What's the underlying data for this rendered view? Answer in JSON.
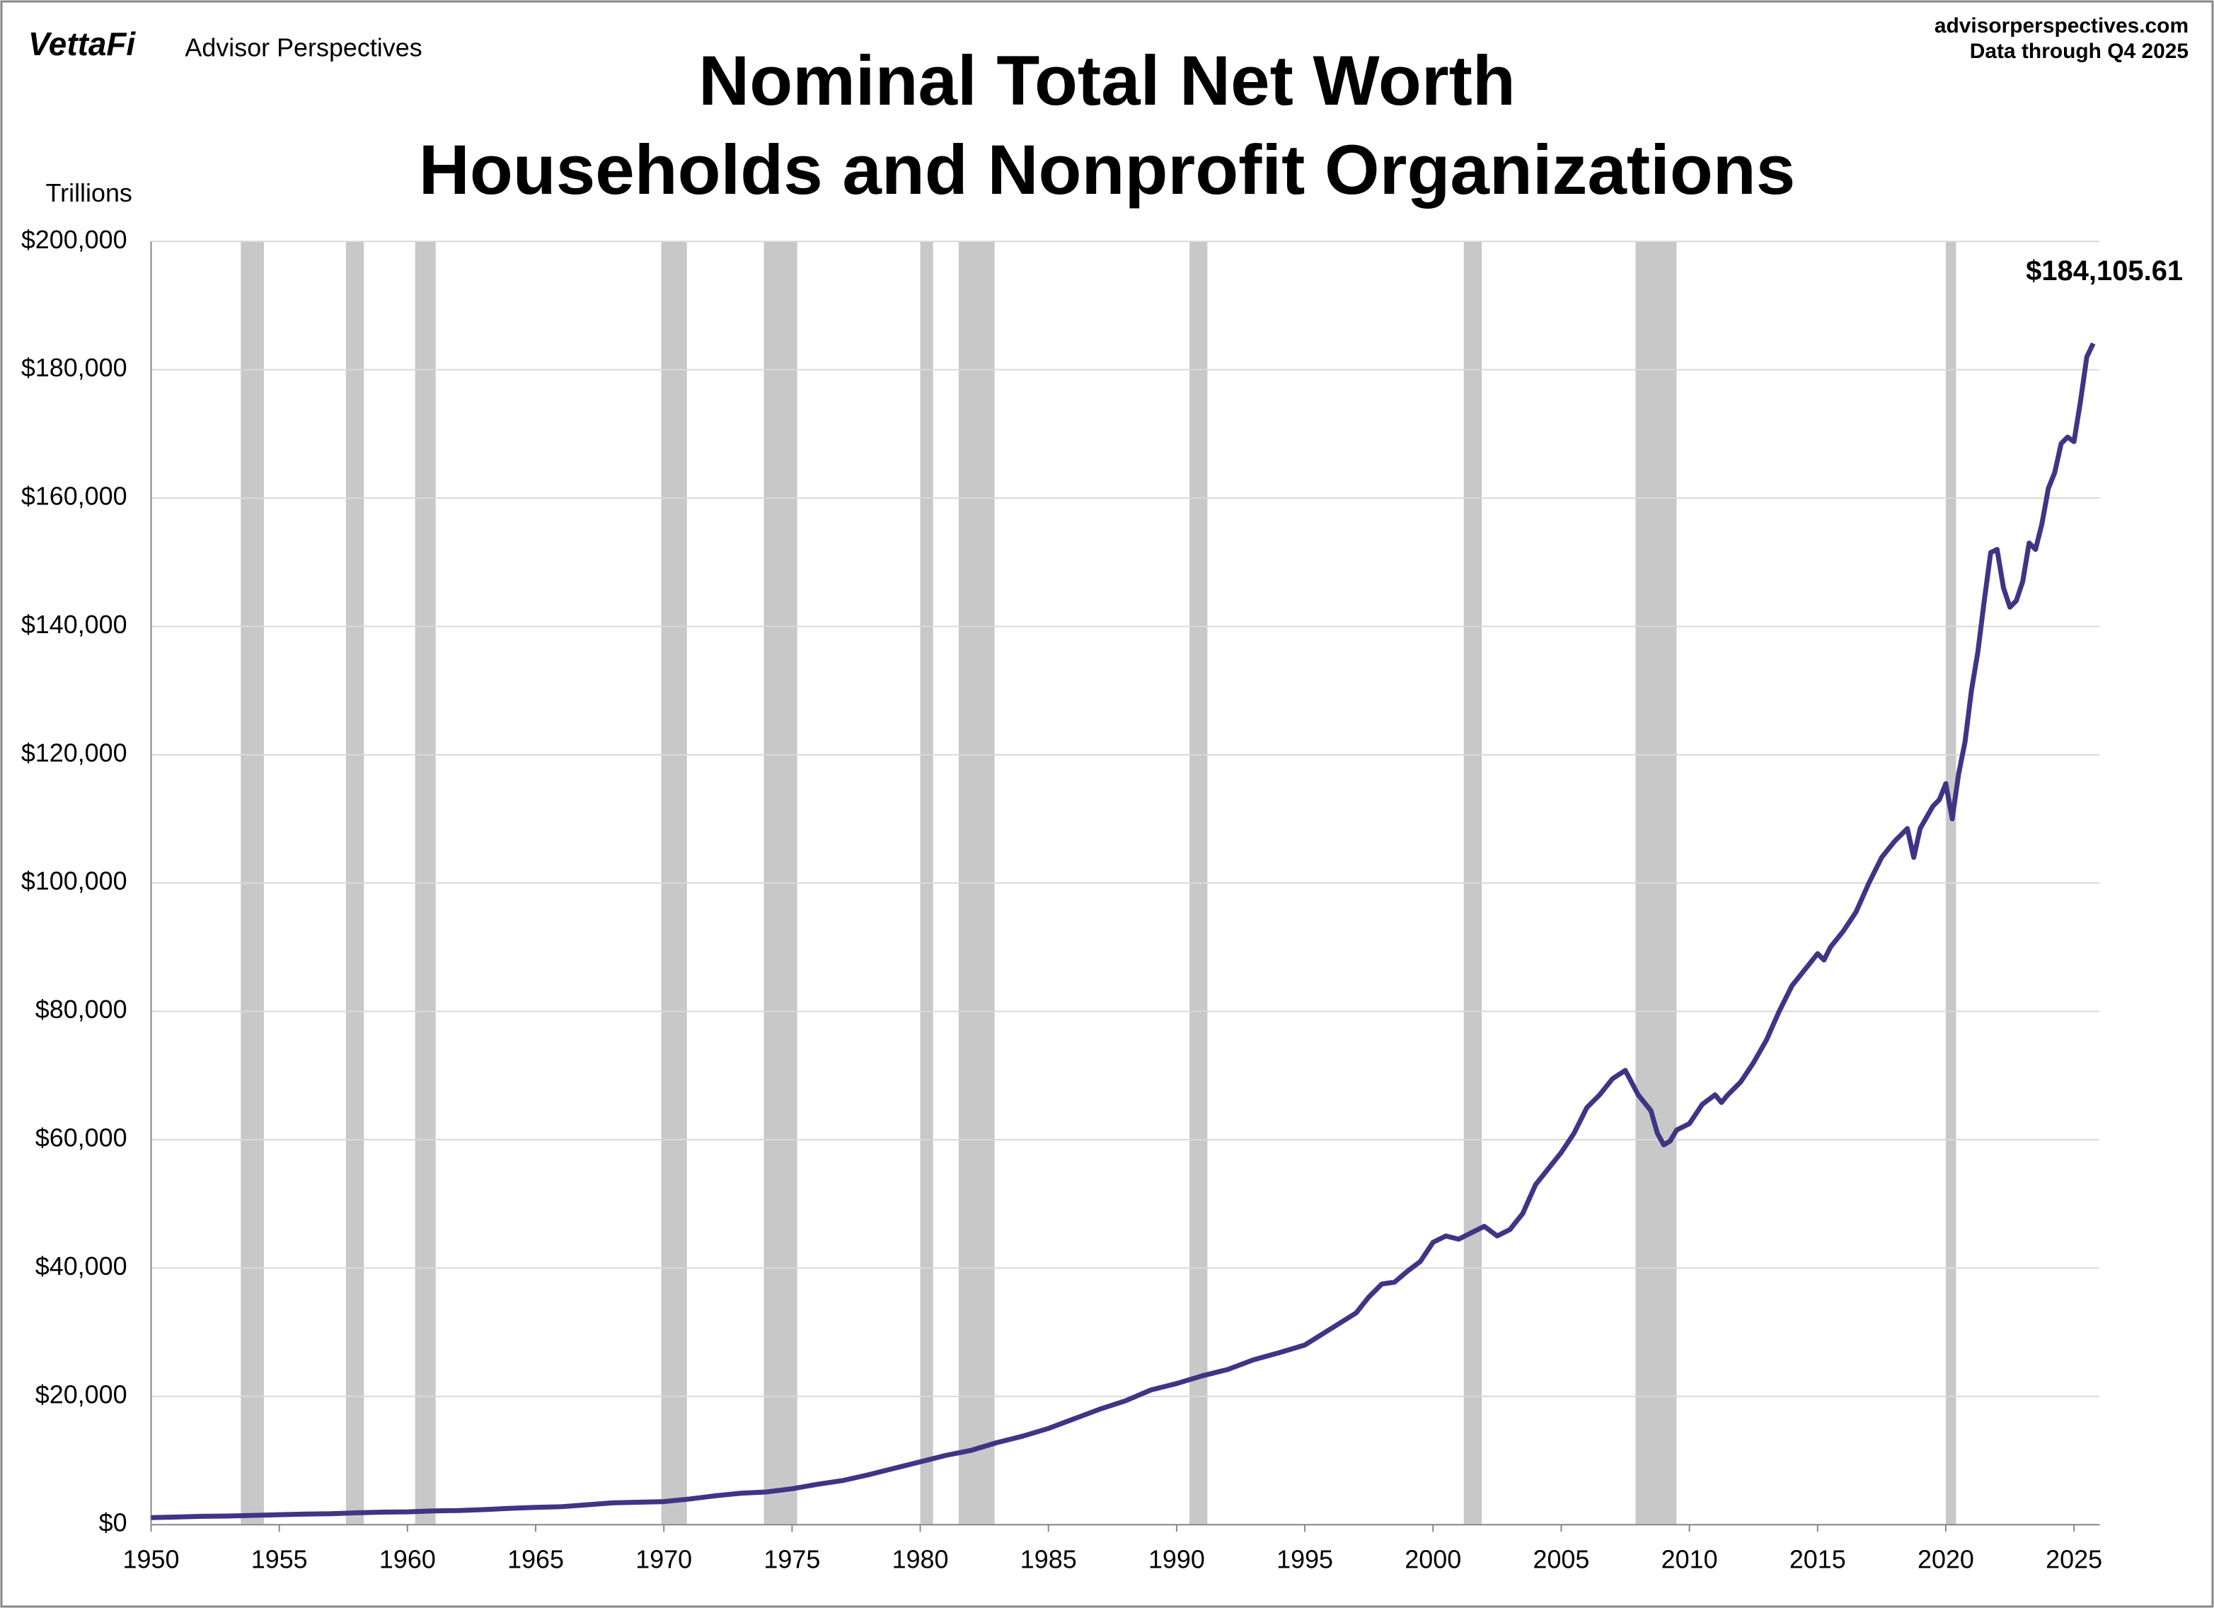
{
  "brand": {
    "logo": "VettaFi",
    "name": "Advisor Perspectives",
    "site": "advisorperspectives.com",
    "note": "Data through Q4 2025"
  },
  "chart_data": {
    "type": "line",
    "title": [
      "Nominal Total Net Worth",
      "Households and Nonprofit Organizations"
    ],
    "y_label": "Trillions",
    "x": [
      1950,
      1951,
      1952,
      1953,
      1954,
      1955,
      1956,
      1957,
      1958,
      1959,
      1960,
      1961,
      1962,
      1963,
      1964,
      1965,
      1966,
      1967,
      1968,
      1969,
      1970,
      1971,
      1972,
      1973,
      1974,
      1975,
      1976,
      1977,
      1978,
      1979,
      1980,
      1981,
      1982,
      1983,
      1984,
      1985,
      1986,
      1987,
      1988,
      1989,
      1990,
      1991,
      1992,
      1993,
      1994,
      1995,
      1996,
      1997,
      1997.5,
      1998,
      1998.5,
      1999,
      1999.5,
      2000,
      2000.5,
      2001,
      2001.5,
      2002,
      2002.5,
      2003,
      2003.5,
      2004,
      2004.5,
      2005,
      2005.5,
      2006,
      2006.5,
      2007,
      2007.5,
      2008,
      2008.5,
      2008.75,
      2009,
      2009.25,
      2009.5,
      2010,
      2010.5,
      2011,
      2011.25,
      2011.5,
      2012,
      2012.5,
      2013,
      2013.5,
      2014,
      2014.5,
      2015,
      2015.25,
      2015.5,
      2016,
      2016.5,
      2017,
      2017.5,
      2018,
      2018.5,
      2018.75,
      2019,
      2019.5,
      2019.75,
      2020,
      2020.25,
      2020.5,
      2020.75,
      2021,
      2021.25,
      2021.5,
      2021.75,
      2022,
      2022.25,
      2022.5,
      2022.75,
      2023,
      2023.25,
      2023.5,
      2023.75,
      2024,
      2024.25,
      2024.5,
      2024.75,
      2025,
      2025.25,
      2025.5,
      2025.75
    ],
    "series": [
      {
        "name": "Nominal Total Net Worth",
        "color": "#3f3585",
        "values": [
          1100,
          1200,
          1300,
          1350,
          1450,
          1550,
          1650,
          1700,
          1850,
          1950,
          2000,
          2150,
          2200,
          2350,
          2550,
          2700,
          2800,
          3100,
          3400,
          3500,
          3600,
          4000,
          4500,
          4900,
          5100,
          5600,
          6300,
          6900,
          7800,
          8800,
          9800,
          10800,
          11600,
          12800,
          13800,
          15000,
          16500,
          18000,
          19300,
          21000,
          22000,
          23200,
          24200,
          25700,
          26800,
          28000,
          30500,
          33000,
          35500,
          37500,
          37800,
          39500,
          41000,
          44000,
          45000,
          44500,
          45500,
          46500,
          45000,
          46000,
          48500,
          53000,
          55500,
          58000,
          61000,
          65000,
          67000,
          69500,
          70800,
          67000,
          64500,
          61000,
          59200,
          59800,
          61500,
          62500,
          65500,
          67000,
          65800,
          67000,
          69000,
          72000,
          75500,
          80000,
          84000,
          86500,
          89000,
          88000,
          90000,
          92500,
          95500,
          100000,
          104000,
          106500,
          108500,
          104000,
          108500,
          112000,
          113000,
          115500,
          110000,
          117000,
          122000,
          130000,
          136000,
          144000,
          151500,
          152000,
          146000,
          143000,
          144000,
          147000,
          153000,
          152000,
          156000,
          161500,
          164000,
          168500,
          169500,
          168800,
          175000,
          182000,
          184105.61
        ]
      }
    ],
    "end_label": {
      "value": 184105.61,
      "label": "$184,105.61"
    },
    "recessions": [
      [
        1953.5,
        1954.4
      ],
      [
        1957.6,
        1958.3
      ],
      [
        1960.3,
        1961.1
      ],
      [
        1969.9,
        1970.9
      ],
      [
        1973.9,
        1975.2
      ],
      [
        1980.0,
        1980.5
      ],
      [
        1981.5,
        1982.9
      ],
      [
        1990.5,
        1991.2
      ],
      [
        2001.2,
        2001.9
      ],
      [
        2007.9,
        2009.5
      ],
      [
        2020.0,
        2020.4
      ]
    ],
    "recession_color": "#c8c8c8",
    "xlim": [
      1950,
      2026
    ],
    "xticks": [
      1950,
      1955,
      1960,
      1965,
      1970,
      1975,
      1980,
      1985,
      1990,
      1995,
      2000,
      2005,
      2010,
      2015,
      2020,
      2025
    ],
    "ylim": [
      0,
      200000
    ],
    "yticks": [
      {
        "value": 0,
        "label": "$0"
      },
      {
        "value": 20000,
        "label": "$20,000"
      },
      {
        "value": 40000,
        "label": "$40,000"
      },
      {
        "value": 60000,
        "label": "$60,000"
      },
      {
        "value": 80000,
        "label": "$80,000"
      },
      {
        "value": 100000,
        "label": "$100,000"
      },
      {
        "value": 120000,
        "label": "$120,000"
      },
      {
        "value": 140000,
        "label": "$140,000"
      },
      {
        "value": 160000,
        "label": "$160,000"
      },
      {
        "value": 180000,
        "label": "$180,000"
      },
      {
        "value": 200000,
        "label": "$200,000"
      }
    ],
    "grid": true
  }
}
